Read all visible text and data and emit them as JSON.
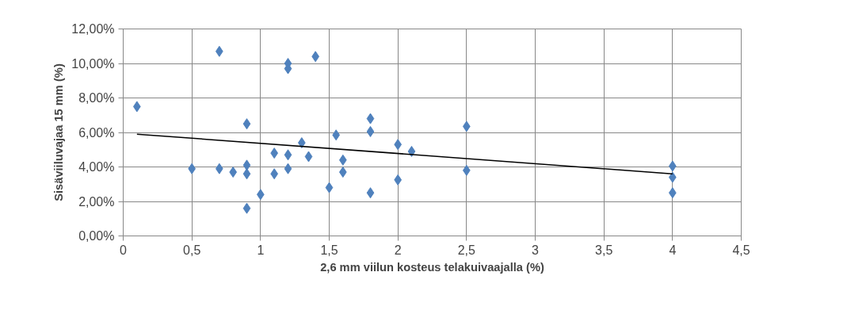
{
  "chart_data": {
    "type": "scatter",
    "xlabel": "2,6 mm viilun kosteus telakuivaajalla (%)",
    "ylabel": "Sisäviiluvajaa 15 mm (%)",
    "xlim": [
      0,
      4.5
    ],
    "xticks": [
      0,
      {
        "value": 0.5,
        "label": "0,5"
      },
      1,
      {
        "value": 1.5,
        "label": "1,5"
      },
      2,
      {
        "value": 2.5,
        "label": "2,5"
      },
      3,
      {
        "value": 3.5,
        "label": "3,5"
      },
      4,
      {
        "value": 4.5,
        "label": "4,5"
      }
    ],
    "ylim": [
      0,
      12
    ],
    "yticks": [
      {
        "value": 0,
        "label": "0,00%"
      },
      {
        "value": 2,
        "label": "2,00%"
      },
      {
        "value": 4,
        "label": "4,00%"
      },
      {
        "value": 6,
        "label": "6,00%"
      },
      {
        "value": 8,
        "label": "8,00%"
      },
      {
        "value": 10,
        "label": "10,00%"
      },
      {
        "value": 12,
        "label": "12,00%"
      }
    ],
    "grid": true,
    "marker": "diamond",
    "series": [
      {
        "color": "#4f81bd",
        "x": [
          0.1,
          0.5,
          0.7,
          0.7,
          0.8,
          0.9,
          0.9,
          0.9,
          0.9,
          1.0,
          1.1,
          1.1,
          1.2,
          1.2,
          1.2,
          1.2,
          1.3,
          1.35,
          1.4,
          1.5,
          1.55,
          1.6,
          1.6,
          1.8,
          1.8,
          1.8,
          2.0,
          2.0,
          2.1,
          2.5,
          2.5,
          4.0,
          4.0,
          4.0
        ],
        "values": [
          7.5,
          3.9,
          10.7,
          3.9,
          3.7,
          6.5,
          4.1,
          3.6,
          1.6,
          2.4,
          4.8,
          3.6,
          10.0,
          9.7,
          4.7,
          3.9,
          5.4,
          4.6,
          10.4,
          2.8,
          5.85,
          4.4,
          3.7,
          6.8,
          6.05,
          2.5,
          5.3,
          3.25,
          4.9,
          6.35,
          3.8,
          4.05,
          3.4,
          2.5
        ]
      },
      {
        "type": "line",
        "marker": "none",
        "color": "#000000",
        "x": [
          0.1,
          4.0
        ],
        "values": [
          5.9,
          3.6
        ]
      }
    ]
  }
}
